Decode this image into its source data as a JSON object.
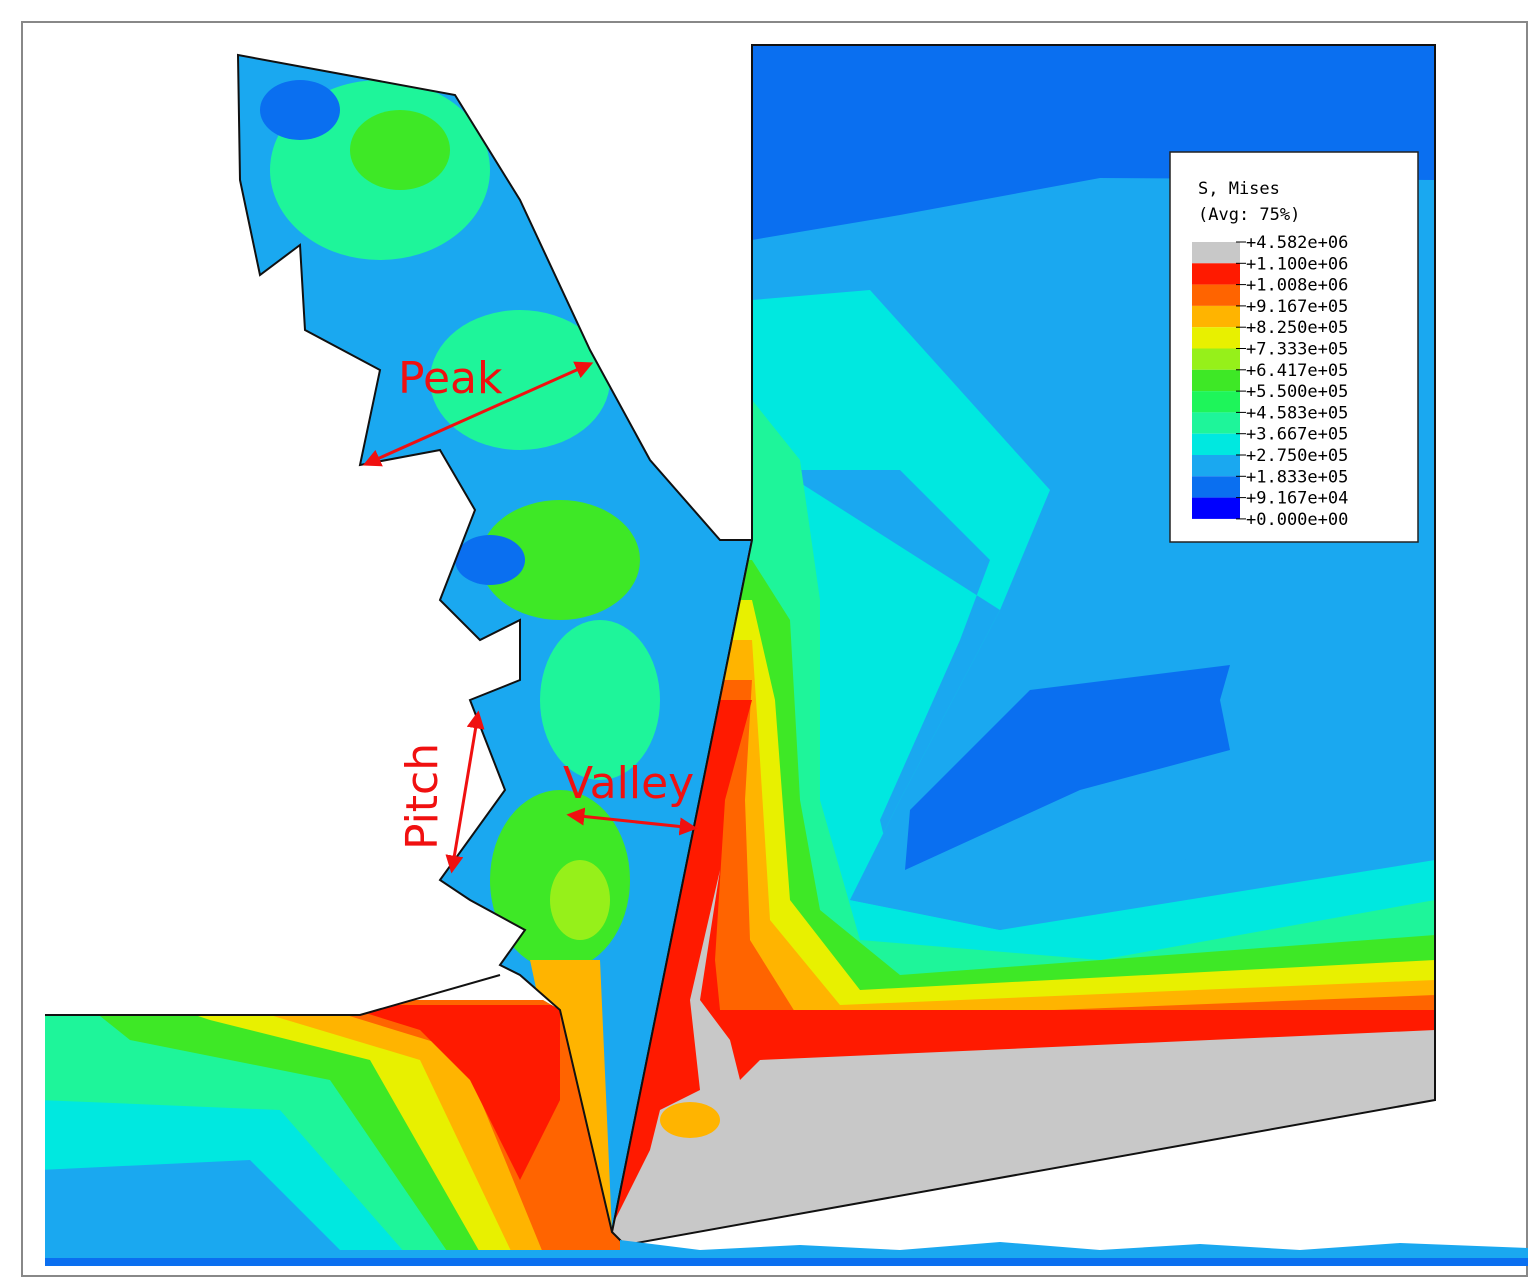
{
  "figure": {
    "legend": {
      "title": "S, Mises",
      "subtitle": "(Avg: 75%)",
      "labels": [
        "+4.582e+06",
        "+1.100e+06",
        "+1.008e+06",
        "+9.167e+05",
        "+8.250e+05",
        "+7.333e+05",
        "+6.417e+05",
        "+5.500e+05",
        "+4.583e+05",
        "+3.667e+05",
        "+2.750e+05",
        "+1.833e+05",
        "+9.167e+04",
        "+0.000e+00"
      ],
      "colors": [
        "#c8c8c8",
        "#ff1a00",
        "#ff6400",
        "#ffb400",
        "#e8f000",
        "#96f01a",
        "#3ee826",
        "#1ef55a",
        "#1ef59a",
        "#00e8e0",
        "#1aa8f0",
        "#0a6ff0",
        "#0000ff"
      ]
    },
    "annotations": {
      "peak": "Peak",
      "pitch": "Pitch",
      "valley": "Valley"
    }
  }
}
